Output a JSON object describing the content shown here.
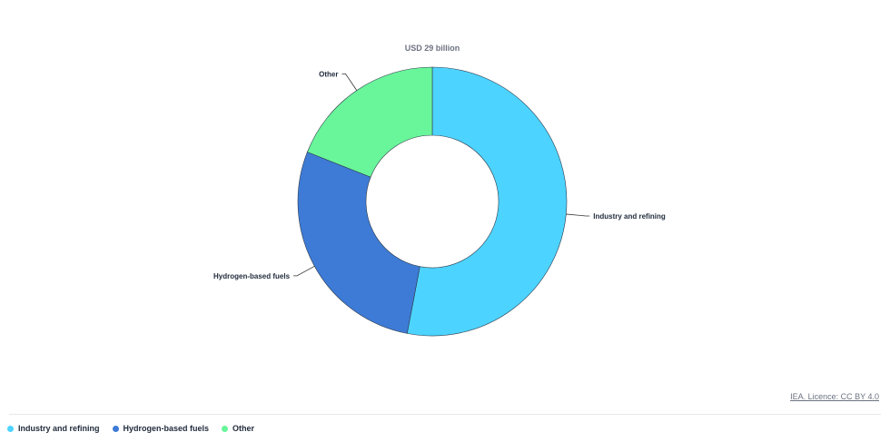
{
  "chart_data": {
    "type": "pie",
    "title": "USD 29 billion",
    "categories": [
      "Industry and refining",
      "Hydrogen-based fuels",
      "Other"
    ],
    "values": [
      53,
      28,
      19
    ],
    "colors": [
      "#4dd3ff",
      "#3e7bd6",
      "#69f59a"
    ],
    "legend_position": "bottom-left"
  },
  "credit": "IEA. Licence: CC BY 4.0"
}
